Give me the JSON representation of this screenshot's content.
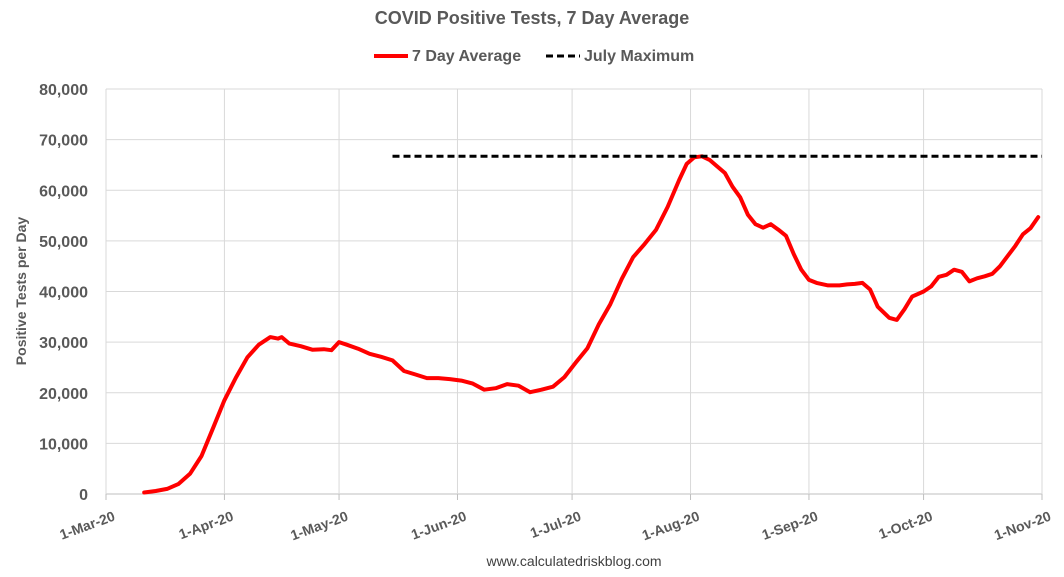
{
  "chart_data": {
    "type": "line",
    "title": "COVID Positive Tests, 7 Day Average",
    "ylabel": "Positive Tests per Day",
    "xlabel": "",
    "source": "www.calculatedriskblog.com",
    "ylim": [
      0,
      80000
    ],
    "y_ticks": [
      "0",
      "10,000",
      "20,000",
      "30,000",
      "40,000",
      "50,000",
      "60,000",
      "70,000",
      "80,000"
    ],
    "x_ticks": [
      "1-Mar-20",
      "1-Apr-20",
      "1-May-20",
      "1-Jun-20",
      "1-Jul-20",
      "1-Aug-20",
      "1-Sep-20",
      "1-Oct-20",
      "1-Nov-20"
    ],
    "xlim": [
      "2020-03-01",
      "2020-11-01"
    ],
    "grid": "vertical and horizontal",
    "legend_position": "top",
    "series": [
      {
        "name": "7 Day Average",
        "color": "#ff0000",
        "style": "solid",
        "points": [
          [
            "2020-03-11",
            300
          ],
          [
            "2020-03-14",
            600
          ],
          [
            "2020-03-17",
            1000
          ],
          [
            "2020-03-20",
            2000
          ],
          [
            "2020-03-23",
            4000
          ],
          [
            "2020-03-26",
            7500
          ],
          [
            "2020-03-29",
            13000
          ],
          [
            "2020-04-01",
            18500
          ],
          [
            "2020-04-04",
            23000
          ],
          [
            "2020-04-07",
            27000
          ],
          [
            "2020-04-10",
            29500
          ],
          [
            "2020-04-13",
            31000
          ],
          [
            "2020-04-15",
            30700
          ],
          [
            "2020-04-16",
            31000
          ],
          [
            "2020-04-18",
            29700
          ],
          [
            "2020-04-21",
            29200
          ],
          [
            "2020-04-24",
            28500
          ],
          [
            "2020-04-27",
            28600
          ],
          [
            "2020-04-29",
            28400
          ],
          [
            "2020-05-01",
            30000
          ],
          [
            "2020-05-03",
            29500
          ],
          [
            "2020-05-06",
            28700
          ],
          [
            "2020-05-09",
            27700
          ],
          [
            "2020-05-12",
            27100
          ],
          [
            "2020-05-15",
            26400
          ],
          [
            "2020-05-18",
            24300
          ],
          [
            "2020-05-21",
            23600
          ],
          [
            "2020-05-24",
            22900
          ],
          [
            "2020-05-27",
            22900
          ],
          [
            "2020-05-30",
            22700
          ],
          [
            "2020-06-02",
            22400
          ],
          [
            "2020-06-05",
            21800
          ],
          [
            "2020-06-08",
            20600
          ],
          [
            "2020-06-11",
            20900
          ],
          [
            "2020-06-14",
            21700
          ],
          [
            "2020-06-17",
            21400
          ],
          [
            "2020-06-20",
            20100
          ],
          [
            "2020-06-23",
            20600
          ],
          [
            "2020-06-26",
            21200
          ],
          [
            "2020-06-29",
            23100
          ],
          [
            "2020-07-02",
            26000
          ],
          [
            "2020-07-05",
            28800
          ],
          [
            "2020-07-08",
            33500
          ],
          [
            "2020-07-11",
            37500
          ],
          [
            "2020-07-14",
            42500
          ],
          [
            "2020-07-17",
            46800
          ],
          [
            "2020-07-20",
            49400
          ],
          [
            "2020-07-23",
            52200
          ],
          [
            "2020-07-26",
            56700
          ],
          [
            "2020-07-29",
            62000
          ],
          [
            "2020-07-31",
            65200
          ],
          [
            "2020-08-02",
            66500
          ],
          [
            "2020-08-04",
            66700
          ],
          [
            "2020-08-06",
            66000
          ],
          [
            "2020-08-08",
            64700
          ],
          [
            "2020-08-10",
            63400
          ],
          [
            "2020-08-12",
            60700
          ],
          [
            "2020-08-14",
            58600
          ],
          [
            "2020-08-16",
            55200
          ],
          [
            "2020-08-18",
            53300
          ],
          [
            "2020-08-20",
            52600
          ],
          [
            "2020-08-22",
            53300
          ],
          [
            "2020-08-24",
            52200
          ],
          [
            "2020-08-26",
            51000
          ],
          [
            "2020-08-28",
            47400
          ],
          [
            "2020-08-30",
            44300
          ],
          [
            "2020-09-01",
            42300
          ],
          [
            "2020-09-03",
            41700
          ],
          [
            "2020-09-06",
            41200
          ],
          [
            "2020-09-09",
            41200
          ],
          [
            "2020-09-11",
            41400
          ],
          [
            "2020-09-13",
            41500
          ],
          [
            "2020-09-15",
            41700
          ],
          [
            "2020-09-17",
            40400
          ],
          [
            "2020-09-19",
            37000
          ],
          [
            "2020-09-22",
            34800
          ],
          [
            "2020-09-24",
            34400
          ],
          [
            "2020-09-26",
            36500
          ],
          [
            "2020-09-28",
            39000
          ],
          [
            "2020-10-01",
            40000
          ],
          [
            "2020-10-03",
            41000
          ],
          [
            "2020-10-05",
            42900
          ],
          [
            "2020-10-07",
            43300
          ],
          [
            "2020-10-09",
            44300
          ],
          [
            "2020-10-11",
            43900
          ],
          [
            "2020-10-13",
            42000
          ],
          [
            "2020-10-15",
            42600
          ],
          [
            "2020-10-17",
            43000
          ],
          [
            "2020-10-19",
            43500
          ],
          [
            "2020-10-21",
            45000
          ],
          [
            "2020-10-23",
            47000
          ],
          [
            "2020-10-25",
            49000
          ],
          [
            "2020-10-27",
            51300
          ],
          [
            "2020-10-29",
            52500
          ],
          [
            "2020-10-31",
            54700
          ]
        ]
      },
      {
        "name": "July Maximum",
        "color": "#000000",
        "style": "dashed",
        "points": [
          [
            "2020-05-15",
            66700
          ],
          [
            "2020-11-01",
            66700
          ]
        ]
      }
    ]
  }
}
